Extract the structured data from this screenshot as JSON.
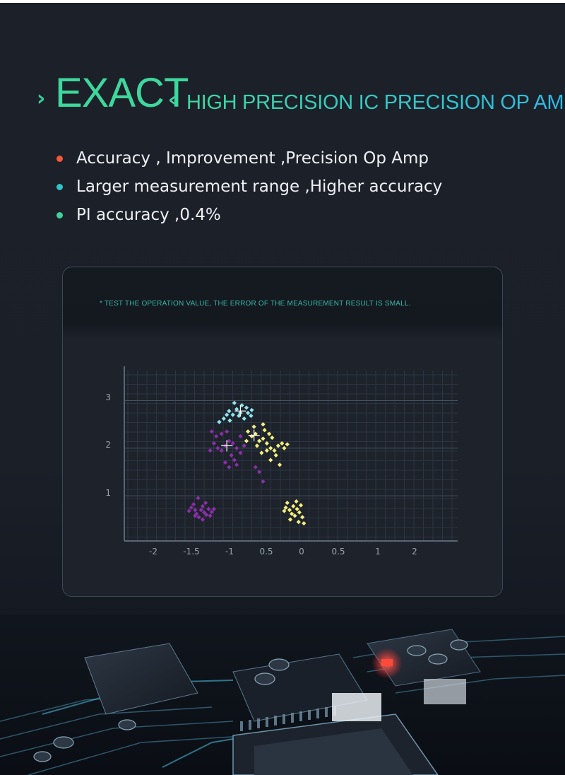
{
  "headline": {
    "left_chevron": "›",
    "title": "EXACT",
    "right_chevron": "‹",
    "subtitle": "HIGH PRECISION IC PRECISION OP AMP"
  },
  "bullets": [
    {
      "text": "Accuracy , Improvement ,Precision Op Amp",
      "color": "#f0583a"
    },
    {
      "text": "Larger measurement range ,Higher accuracy",
      "color": "#2fc4c8"
    },
    {
      "text": "PI accuracy ,0.4%",
      "color": "#3fd19a"
    }
  ],
  "card": {
    "note": "* TEST THE OPERATION VALUE, THE ERROR OF THE MEASUREMENT RESULT IS SMALL."
  },
  "chart_data": {
    "type": "scatter",
    "title": "",
    "xlabel": "",
    "ylabel": "",
    "x_tick_labels": [
      "-2",
      "-1.5",
      "-1",
      "0.5",
      "0",
      "0.5",
      "1",
      "2"
    ],
    "y_tick_labels": [
      "1",
      "2",
      "3"
    ],
    "ylim": [
      0,
      3.5
    ],
    "grid": true,
    "series": [
      {
        "color": "#8fe6f0",
        "points": [
          [
            -0.95,
            2.78
          ],
          [
            -0.85,
            2.82
          ],
          [
            -0.78,
            2.9
          ],
          [
            -0.72,
            2.85
          ],
          [
            -0.9,
            2.7
          ],
          [
            -0.82,
            2.68
          ],
          [
            -0.7,
            2.74
          ],
          [
            -1.02,
            2.62
          ],
          [
            -0.94,
            2.58
          ],
          [
            -0.75,
            2.62
          ],
          [
            -0.65,
            2.8
          ],
          [
            -0.88,
            2.95
          ],
          [
            -0.8,
            2.74
          ],
          [
            -1.08,
            2.55
          ],
          [
            -0.66,
            2.68
          ],
          [
            -0.98,
            2.7
          ]
        ]
      },
      {
        "color": "#f4ef7a",
        "points": [
          [
            -0.55,
            2.15
          ],
          [
            -0.5,
            2.2
          ],
          [
            -0.45,
            2.1
          ],
          [
            -0.4,
            2.0
          ],
          [
            -0.35,
            1.95
          ],
          [
            -0.3,
            2.05
          ],
          [
            -0.6,
            2.3
          ],
          [
            -0.65,
            2.25
          ],
          [
            -0.7,
            2.35
          ],
          [
            -0.48,
            2.38
          ],
          [
            -0.42,
            2.3
          ],
          [
            -0.25,
            2.1
          ],
          [
            -0.22,
            2.0
          ],
          [
            -0.33,
            1.85
          ],
          [
            -0.4,
            1.75
          ],
          [
            -0.28,
            1.65
          ],
          [
            -0.52,
            1.9
          ],
          [
            -0.58,
            2.05
          ],
          [
            -0.72,
            2.15
          ],
          [
            -0.62,
            2.45
          ],
          [
            -0.5,
            2.5
          ],
          [
            -0.38,
            2.22
          ],
          [
            -0.18,
            2.08
          ],
          [
            -0.45,
            1.95
          ],
          [
            -0.2,
            0.75
          ],
          [
            -0.15,
            0.7
          ],
          [
            -0.1,
            0.78
          ],
          [
            -0.05,
            0.72
          ],
          [
            0.0,
            0.8
          ],
          [
            -0.12,
            0.62
          ],
          [
            -0.08,
            0.58
          ],
          [
            -0.02,
            0.65
          ],
          [
            -0.18,
            0.85
          ],
          [
            -0.06,
            0.88
          ],
          [
            0.02,
            0.55
          ],
          [
            -0.14,
            0.5
          ],
          [
            0.04,
            0.42
          ],
          [
            -0.03,
            0.45
          ],
          [
            -0.22,
            0.68
          ]
        ]
      },
      {
        "color": "#8a2fa8",
        "points": [
          [
            -1.15,
            2.1
          ],
          [
            -1.1,
            2.0
          ],
          [
            -1.05,
            1.95
          ],
          [
            -1.0,
            2.05
          ],
          [
            -0.95,
            2.15
          ],
          [
            -0.9,
            2.1
          ],
          [
            -0.85,
            2.0
          ],
          [
            -0.8,
            1.9
          ],
          [
            -1.12,
            2.25
          ],
          [
            -1.05,
            2.3
          ],
          [
            -0.98,
            2.35
          ],
          [
            -1.2,
            1.95
          ],
          [
            -0.92,
            1.85
          ],
          [
            -0.88,
            1.75
          ],
          [
            -1.0,
            1.7
          ],
          [
            -0.95,
            1.6
          ],
          [
            -0.8,
            2.25
          ],
          [
            -0.75,
            2.05
          ],
          [
            -1.18,
            2.35
          ],
          [
            -0.85,
            1.65
          ],
          [
            -0.6,
            1.6
          ],
          [
            -0.55,
            1.5
          ],
          [
            -0.5,
            1.3
          ],
          [
            -1.45,
            0.75
          ],
          [
            -1.4,
            0.7
          ],
          [
            -1.38,
            0.62
          ],
          [
            -1.32,
            0.7
          ],
          [
            -1.28,
            0.65
          ],
          [
            -1.25,
            0.6
          ],
          [
            -1.35,
            0.55
          ],
          [
            -1.42,
            0.82
          ],
          [
            -1.3,
            0.78
          ],
          [
            -1.22,
            0.72
          ],
          [
            -1.18,
            0.66
          ],
          [
            -1.4,
            0.58
          ],
          [
            -1.48,
            0.68
          ],
          [
            -1.3,
            0.5
          ],
          [
            -1.26,
            0.85
          ],
          [
            -1.36,
            0.95
          ],
          [
            -1.2,
            0.58
          ],
          [
            -1.15,
            0.72
          ]
        ]
      }
    ],
    "centers": [
      {
        "color": "#ffffff",
        "point": [
          -0.8,
          2.78
        ]
      },
      {
        "color": "#ffffff",
        "point": [
          -0.62,
          2.27
        ]
      },
      {
        "color": "#ffffff",
        "point": [
          -0.98,
          2.05
        ]
      }
    ]
  }
}
